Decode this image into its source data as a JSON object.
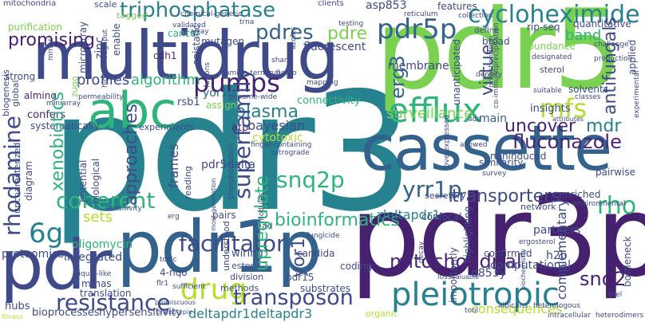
{
  "colors": {
    "purple": "#45216f",
    "indigo": "#3e4a89",
    "blue": "#33638d",
    "teal": "#26828e",
    "green": "#2fb47c",
    "lime": "#7ad151",
    "yellowgreen": "#b5de2b",
    "yellow": "#e0e31b",
    "dark": "#482576"
  },
  "words": {
    "pdr3": "pdr3",
    "pdr5": "pdr5",
    "multidrug": "multidrug",
    "cassette": "cassette",
    "pdr3p": "pdr3p",
    "pdr1p": "pdr1p",
    "pdr": "pdr",
    "abc": "abc",
    "efflux": "efflux",
    "pleiotropic": "pleiotropic",
    "drug": "drug",
    "resistance": "resistance",
    "transposon": "transposon",
    "pumps": "pumps",
    "cycloheximide": "cycloheximide",
    "pdr5p": "pdr5p",
    "xenobiotics": "xenobiotics",
    "rhodamine": "rhodamine",
    "coherent": "coherent",
    "snq2p": "snq2p",
    "superfamily": "superfamily",
    "fluconazole": "fluconazole",
    "mitochondrial": "mitochondrial",
    "transporters": "transporters",
    "yrr1p": "yrr1p",
    "surveillance": "surveillance",
    "uncover": "uncover",
    "mdr": "mdr",
    "mfs": "mfs",
    "virtue": "virtue",
    "erg3": "erg3",
    "triphosphatase": "triphosphatase",
    "pdres": "pdres",
    "pdre": "pdre",
    "promising": "promising",
    "algorithm": "algorithm",
    "profiles": "profiles",
    "plasma": "plasma",
    "bayesian": "bayesian",
    "6g": "6g",
    "approaches": "approaches",
    "bioinformatics": "bioinformatics",
    "upregulate": "upregulate",
    "facilitator": "facilitator",
    "rho": "rho",
    "snq2": "snq2",
    "complementary": "complementary",
    "consequences": "consequences",
    "deltapdr1": "deltapdr1",
    "deltapdr1deltapdr3": "deltapdr1deltapdr3",
    "pdr5delta": "pdr5delta",
    "connectivity": "connectivity",
    "fluorescent": "fluorescent",
    "membrane": "membrane",
    "band": "band",
    "antifungals": "antifungals",
    "insights": "insights",
    "main": "main",
    "nonnoduced": "noninduced",
    "cytotoxic": "cytotoxic",
    "yor1p": "yor1p",
    "rsb1": "rsb1",
    "atp": "atp",
    "sets": "sets",
    "frames": "frames",
    "cancer": "cancer",
    "mutagen": "mutagen",
    "cdh1": "cdh1",
    "zinc": "zinc",
    "microarray": "microarray",
    "purification": "purification",
    "tagged": "tagged",
    "asp853": "asp853",
    "features": "features",
    "rip_seq": "rip-seq",
    "quantitative": "quantitative",
    "abundance": "abundance",
    "broad": "broad",
    "define": "define",
    "testing": "testing",
    "clients": "clients",
    "scale": "scale",
    "mitochondria": "mitochondria",
    "strong": "strong",
    "alming": "alming",
    "confers": "confers",
    "systematically": "systematically",
    "experiments": "experiments",
    "assign": "assign",
    "zugo": "zugo",
    "biogenesis": "biogenesis",
    "global": "global",
    "permeability": "permeability",
    "miniarray": "miniarray",
    "high_throughput": "high-throughput",
    "epistatic": "epistatic",
    "amino_terminal": "amino-terminal",
    "genome_wide": "genome-wide",
    "fusions": "fusions",
    "homo": "homo",
    "share": "share",
    "mapping": "mapping",
    "azoles": "azoles",
    "enable": "enable",
    "array": "array",
    "validated": "validated",
    "chemical_genetic": "chemical-genetic",
    "trna": "trna",
    "reticulum": "reticulum",
    "collection": "collection",
    "co_immunoprecipitation": "co-immunoprecipitation",
    "unanticipated": "unanticipated",
    "designated": "designated",
    "density": "density",
    "sterol": "sterol",
    "challenge": "challenge",
    "production": "production",
    "applied": "applied",
    "solvents": "solvents",
    "classes": "classes",
    "suitable": "suitable",
    "experimental": "experimental",
    "mitochondrion": "mitochondrion",
    "attributes": "attributes",
    "overexpressed": "overexpressed",
    "ada": "ada",
    "allowed": "allowed",
    "similarity": "similarity",
    "survey": "survey",
    "pairwise": "pairwise",
    "enriched": "enriched",
    "environmental": "environmental",
    "network": "network",
    "secretory": "secretory",
    "confocal": "confocal",
    "partners": "partners",
    "ergosterol": "ergosterol",
    "confirmed": "confirmed",
    "h2b": "h2b",
    "computational": "computational",
    "highlighting": "highlighting",
    "importantly": "importantly",
    "d853y": "d853y",
    "organic": "organic",
    "tool": "tool",
    "albicans": "albicans",
    "heterologous": "heterologous",
    "intracellular": "intracellular",
    "bottleneck": "bottleneck",
    "brel": "brel",
    "heterodimers": "heterodimers",
    "biochemistry": "biochemistry",
    "valuable": "valuable",
    "loss": "loss",
    "decay": "decay",
    "coding": "coding",
    "pdr15": "pdr15",
    "yor1": "yor1",
    "substrates": "substrates",
    "methods": "methods",
    "division": "division",
    "ester": "ester",
    "wiring": "wiring",
    "candida": "candida",
    "understood": "understood",
    "4_nqo": "4-nqo",
    "lead": "lead",
    "pairs": "pairs",
    "fungicide": "fungicide",
    "modules": "modules",
    "most_generation": "most-generation",
    "finger_containing": "finger-containing",
    "retrograde": "retrograde",
    "phosphoprotein": "phosphoprotein",
    "reading": "reading",
    "erg": "erg",
    "sensitivity": "sensitivity",
    "potential": "potential",
    "biological": "biological",
    "diagram": "diagram",
    "uncharacterized": "uncharacterized",
    "oligomycin": "oligomycin",
    "integrated": "integrated",
    "proteomics": "proteomics",
    "liquid_like": "liquid-like",
    "toxic": "toxic",
    "mrnas": "mrnas",
    "translation": "translation",
    "flr1": "flr1",
    "sufficient": "sufficient",
    "hubs": "hubs",
    "bioprocesses": "bioprocesses",
    "hypersensitivity": "hypersensitivity",
    "promiscuous": "promiscuous",
    "phenotypic": "phenotypic",
    "fitness": "fitness",
    "mrnps": "mrnps"
  }
}
